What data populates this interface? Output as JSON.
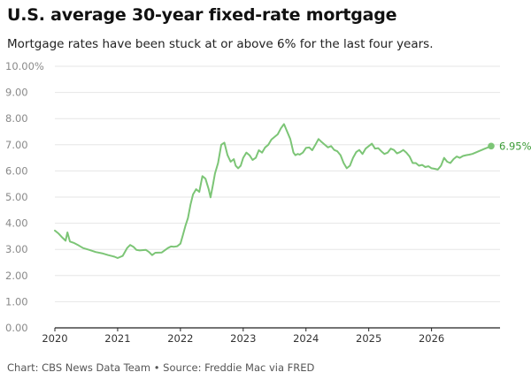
{
  "header": {
    "title": "U.S. average 30-year fixed-rate mortgage",
    "subtitle": "Mortgage rates have been stuck at or above 6% for the last four years."
  },
  "footer": {
    "source": "Chart: CBS News Data Team • Source: Freddie Mac via FRED"
  },
  "colors": {
    "line": "#7cc576",
    "end_label": "#3a9a35",
    "grid": "#e6e6e6",
    "axis": "#222222"
  },
  "chart_data": {
    "type": "line",
    "title": "U.S. average 30-year fixed-rate mortgage",
    "subtitle": "Mortgage rates have been stuck at or above 6% for the last four years.",
    "xlabel": "",
    "ylabel": "",
    "xlim": [
      2020,
      2026.95
    ],
    "ylim": [
      0,
      10
    ],
    "grid": true,
    "legend": "none",
    "y_ticks": [
      "0.00",
      "1.00",
      "2.00",
      "3.00",
      "4.00",
      "5.00",
      "6.00",
      "7.00",
      "8.00",
      "9.00",
      "10.00%"
    ],
    "x_ticks": [
      "2020",
      "2021",
      "2022",
      "2023",
      "2024",
      "2025",
      "2026"
    ],
    "end_label": "6.95%",
    "series": [
      {
        "name": "",
        "x": [
          2020.0,
          2020.06,
          2020.12,
          2020.17,
          2020.2,
          2020.24,
          2020.3,
          2020.38,
          2020.45,
          2020.55,
          2020.65,
          2020.75,
          2020.85,
          2020.95,
          2021.0,
          2021.08,
          2021.15,
          2021.2,
          2021.25,
          2021.3,
          2021.35,
          2021.45,
          2021.5,
          2021.55,
          2021.6,
          2021.7,
          2021.8,
          2021.85,
          2021.9,
          2021.95,
          2022.0,
          2022.04,
          2022.08,
          2022.12,
          2022.16,
          2022.2,
          2022.25,
          2022.3,
          2022.35,
          2022.4,
          2022.45,
          2022.48,
          2022.52,
          2022.55,
          2022.6,
          2022.65,
          2022.7,
          2022.75,
          2022.8,
          2022.85,
          2022.88,
          2022.92,
          2022.96,
          2023.0,
          2023.05,
          2023.1,
          2023.15,
          2023.2,
          2023.25,
          2023.3,
          2023.35,
          2023.4,
          2023.45,
          2023.5,
          2023.55,
          2023.6,
          2023.65,
          2023.7,
          2023.75,
          2023.8,
          2023.83,
          2023.87,
          2023.9,
          2023.95,
          2024.0,
          2024.05,
          2024.1,
          2024.15,
          2024.2,
          2024.25,
          2024.3,
          2024.35,
          2024.4,
          2024.45,
          2024.5,
          2024.55,
          2024.6,
          2024.65,
          2024.7,
          2024.75,
          2024.8,
          2024.85,
          2024.9,
          2024.95,
          2025.0,
          2025.05,
          2025.1,
          2025.15,
          2025.2,
          2025.25,
          2025.3,
          2025.35,
          2025.4,
          2025.45,
          2025.5,
          2025.55,
          2025.6,
          2025.65,
          2025.7,
          2025.75,
          2025.8,
          2025.85,
          2025.9,
          2025.95,
          2026.0,
          2026.05,
          2026.1,
          2026.15,
          2026.2,
          2026.25,
          2026.3,
          2026.35,
          2026.4,
          2026.45,
          2026.5,
          2026.55,
          2026.6,
          2026.65,
          2026.7,
          2026.75,
          2026.8,
          2026.85,
          2026.9,
          2026.95
        ],
        "values": [
          3.72,
          3.6,
          3.45,
          3.33,
          3.65,
          3.3,
          3.25,
          3.15,
          3.05,
          2.98,
          2.9,
          2.85,
          2.78,
          2.72,
          2.67,
          2.75,
          3.05,
          3.17,
          3.1,
          2.98,
          2.96,
          2.98,
          2.9,
          2.78,
          2.87,
          2.88,
          3.05,
          3.11,
          3.1,
          3.12,
          3.22,
          3.55,
          3.9,
          4.2,
          4.7,
          5.1,
          5.3,
          5.2,
          5.8,
          5.7,
          5.3,
          4.99,
          5.5,
          5.9,
          6.3,
          7.0,
          7.08,
          6.6,
          6.35,
          6.45,
          6.2,
          6.1,
          6.2,
          6.5,
          6.7,
          6.6,
          6.42,
          6.5,
          6.79,
          6.7,
          6.9,
          7.0,
          7.2,
          7.3,
          7.4,
          7.63,
          7.79,
          7.5,
          7.22,
          6.7,
          6.6,
          6.65,
          6.62,
          6.7,
          6.88,
          6.9,
          6.79,
          7.0,
          7.22,
          7.1,
          7.0,
          6.9,
          6.95,
          6.8,
          6.75,
          6.6,
          6.3,
          6.1,
          6.2,
          6.5,
          6.72,
          6.8,
          6.65,
          6.85,
          6.95,
          7.04,
          6.85,
          6.87,
          6.75,
          6.65,
          6.7,
          6.85,
          6.8,
          6.67,
          6.72,
          6.8,
          6.7,
          6.55,
          6.3,
          6.3,
          6.2,
          6.23,
          6.15,
          6.18,
          6.1,
          6.08,
          6.05,
          6.2,
          6.5,
          6.35,
          6.3,
          6.45,
          6.55,
          6.5,
          6.57,
          6.6,
          6.62,
          6.65,
          6.7,
          6.75,
          6.8,
          6.85,
          6.9,
          6.95
        ]
      }
    ]
  }
}
